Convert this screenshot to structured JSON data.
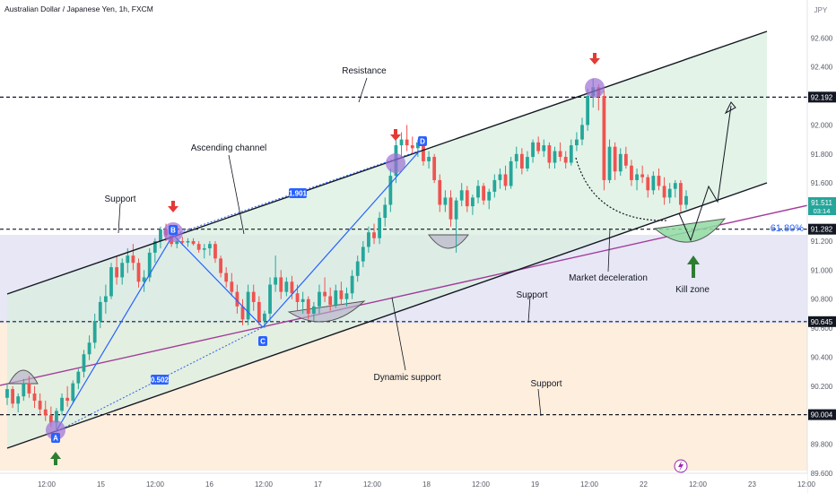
{
  "chart_data": {
    "type": "candlestick",
    "title": "Australian Dollar / Japanese Yen, 1h, FXCM",
    "currency": "JPY",
    "ylim": [
      89.6,
      92.75
    ],
    "y_ticks": [
      89.6,
      89.8,
      90.0,
      90.2,
      90.4,
      90.6,
      90.8,
      91.0,
      91.2,
      91.4,
      91.6,
      91.8,
      92.0,
      92.2,
      92.4,
      92.6
    ],
    "y_tick_labels": [
      "89.600",
      "89.800",
      "90.000",
      "90.200",
      "90.400",
      "90.600",
      "90.800",
      "91.000",
      "91.200",
      "91.400",
      "91.600",
      "91.800",
      "92.000",
      "92.200",
      "92.400",
      "92.600"
    ],
    "x_ticks": [
      "12:00",
      "15",
      "12:00",
      "16",
      "12:00",
      "17",
      "12:00",
      "18",
      "12:00",
      "19",
      "12:00",
      "22",
      "12:00",
      "23",
      "12:00"
    ],
    "price_levels": [
      {
        "value": 92.192,
        "label": "92.192"
      },
      {
        "value": 91.282,
        "label": "91.282"
      },
      {
        "value": 90.645,
        "label": "90.645"
      },
      {
        "value": 90.004,
        "label": "90.004"
      }
    ],
    "current_price": {
      "value": 91.511,
      "label": "91.511",
      "countdown": "03:14"
    },
    "fib_label": "61.80%",
    "pattern_points": [
      {
        "label": "A",
        "value": 89.92
      },
      {
        "label": "B",
        "value": 91.3
      },
      {
        "label": "C",
        "value": 90.6
      },
      {
        "label": "D",
        "value": 92.0
      }
    ],
    "pattern_ratios": [
      "1.901",
      "0.502"
    ],
    "annotations": [
      "Resistance",
      "Ascending channel",
      "Support",
      "Support",
      "Support",
      "Dynamic support",
      "Market deceleration",
      "Kill zone"
    ],
    "colors": {
      "up": "#26a69a",
      "down": "#ef5350",
      "channel_fill": "#e7f4ec",
      "zone_blue": "#e7e7f5",
      "zone_orange": "#fdeedd",
      "pattern": "#2962ff",
      "circle": "#9c6fd6",
      "magenta_line": "#a23b9a",
      "arrow_red": "#e53935",
      "arrow_green": "#2e7d32",
      "kill_zone": "#8fdba1"
    },
    "candles": [
      [
        90.12,
        90.22,
        90.07,
        90.18
      ],
      [
        90.18,
        90.2,
        90.05,
        90.08
      ],
      [
        90.08,
        90.15,
        90.02,
        90.13
      ],
      [
        90.13,
        90.25,
        90.1,
        90.22
      ],
      [
        90.22,
        90.27,
        90.12,
        90.15
      ],
      [
        90.15,
        90.2,
        90.05,
        90.1
      ],
      [
        90.1,
        90.15,
        90.0,
        90.04
      ],
      [
        90.04,
        90.1,
        89.96,
        90.0
      ],
      [
        90.0,
        90.06,
        89.92,
        89.95
      ],
      [
        89.95,
        90.05,
        89.9,
        90.03
      ],
      [
        90.03,
        90.15,
        90.0,
        90.12
      ],
      [
        90.12,
        90.2,
        90.06,
        90.1
      ],
      [
        90.1,
        90.24,
        90.08,
        90.22
      ],
      [
        90.22,
        90.32,
        90.18,
        90.3
      ],
      [
        90.3,
        90.45,
        90.26,
        90.42
      ],
      [
        90.42,
        90.55,
        90.38,
        90.5
      ],
      [
        90.5,
        90.7,
        90.46,
        90.65
      ],
      [
        90.65,
        90.82,
        90.6,
        90.78
      ],
      [
        90.78,
        90.9,
        90.7,
        90.82
      ],
      [
        90.82,
        91.05,
        90.8,
        91.02
      ],
      [
        91.02,
        91.1,
        90.9,
        90.95
      ],
      [
        90.95,
        91.08,
        90.9,
        91.05
      ],
      [
        91.05,
        91.15,
        90.98,
        91.1
      ],
      [
        91.1,
        91.18,
        91.0,
        91.05
      ],
      [
        91.05,
        91.08,
        90.88,
        90.92
      ],
      [
        90.92,
        91.0,
        90.85,
        90.95
      ],
      [
        90.95,
        91.15,
        90.92,
        91.12
      ],
      [
        91.12,
        91.22,
        91.05,
        91.2
      ],
      [
        91.2,
        91.3,
        91.15,
        91.28
      ],
      [
        91.28,
        91.32,
        91.2,
        91.24
      ],
      [
        91.24,
        91.26,
        91.16,
        91.18
      ],
      [
        91.18,
        91.22,
        91.15,
        91.2
      ],
      [
        91.2,
        91.23,
        91.17,
        91.19
      ],
      [
        91.19,
        91.22,
        91.16,
        91.2
      ],
      [
        91.2,
        91.22,
        91.17,
        91.18
      ],
      [
        91.18,
        91.2,
        91.12,
        91.14
      ],
      [
        91.14,
        91.18,
        91.08,
        91.15
      ],
      [
        91.15,
        91.2,
        91.1,
        91.18
      ],
      [
        91.18,
        91.2,
        91.05,
        91.08
      ],
      [
        91.08,
        91.1,
        90.95,
        90.98
      ],
      [
        90.98,
        91.02,
        90.88,
        90.92
      ],
      [
        90.92,
        90.98,
        90.82,
        90.85
      ],
      [
        90.85,
        90.9,
        90.7,
        90.75
      ],
      [
        90.75,
        90.8,
        90.62,
        90.66
      ],
      [
        90.66,
        90.9,
        90.62,
        90.85
      ],
      [
        90.85,
        90.9,
        90.72,
        90.78
      ],
      [
        90.78,
        90.82,
        90.62,
        90.65
      ],
      [
        90.65,
        90.72,
        90.6,
        90.7
      ],
      [
        90.7,
        90.95,
        90.65,
        90.9
      ],
      [
        90.9,
        91.1,
        90.85,
        90.95
      ],
      [
        90.95,
        91.0,
        90.8,
        90.85
      ],
      [
        90.85,
        90.95,
        90.82,
        90.92
      ],
      [
        90.92,
        90.96,
        90.8,
        90.84
      ],
      [
        90.84,
        90.9,
        90.72,
        90.78
      ],
      [
        90.78,
        90.85,
        90.7,
        90.8
      ],
      [
        90.8,
        90.82,
        90.66,
        90.7
      ],
      [
        90.7,
        90.78,
        90.65,
        90.75
      ],
      [
        90.75,
        90.9,
        90.7,
        90.85
      ],
      [
        90.85,
        90.95,
        90.78,
        90.82
      ],
      [
        90.82,
        90.88,
        90.72,
        90.76
      ],
      [
        90.76,
        90.9,
        90.74,
        90.86
      ],
      [
        90.86,
        90.92,
        90.76,
        90.8
      ],
      [
        90.8,
        90.88,
        90.75,
        90.84
      ],
      [
        90.84,
        91.0,
        90.8,
        90.96
      ],
      [
        90.96,
        91.1,
        90.92,
        91.06
      ],
      [
        91.06,
        91.2,
        91.02,
        91.16
      ],
      [
        91.16,
        91.3,
        91.12,
        91.26
      ],
      [
        91.26,
        91.32,
        91.18,
        91.22
      ],
      [
        91.22,
        91.4,
        91.18,
        91.36
      ],
      [
        91.36,
        91.5,
        91.3,
        91.45
      ],
      [
        91.45,
        91.7,
        91.4,
        91.65
      ],
      [
        91.65,
        91.9,
        91.6,
        91.86
      ],
      [
        91.86,
        91.95,
        91.78,
        91.9
      ],
      [
        91.9,
        92.0,
        91.82,
        91.86
      ],
      [
        91.86,
        91.92,
        91.8,
        91.84
      ],
      [
        91.84,
        91.9,
        91.78,
        91.88
      ],
      [
        91.88,
        91.9,
        91.72,
        91.75
      ],
      [
        91.75,
        91.82,
        91.7,
        91.78
      ],
      [
        91.78,
        91.8,
        91.6,
        91.62
      ],
      [
        91.62,
        91.66,
        91.4,
        91.45
      ],
      [
        91.45,
        91.55,
        91.4,
        91.5
      ],
      [
        91.5,
        91.55,
        91.3,
        91.35
      ],
      [
        91.35,
        91.5,
        91.12,
        91.48
      ],
      [
        91.48,
        91.6,
        91.44,
        91.55
      ],
      [
        91.55,
        91.58,
        91.4,
        91.44
      ],
      [
        91.44,
        91.52,
        91.38,
        91.5
      ],
      [
        91.5,
        91.62,
        91.46,
        91.58
      ],
      [
        91.58,
        91.6,
        91.45,
        91.48
      ],
      [
        91.48,
        91.56,
        91.42,
        91.54
      ],
      [
        91.54,
        91.66,
        91.5,
        91.62
      ],
      [
        91.62,
        91.7,
        91.56,
        91.66
      ],
      [
        91.66,
        91.72,
        91.55,
        91.58
      ],
      [
        91.58,
        91.78,
        91.56,
        91.75
      ],
      [
        91.75,
        91.85,
        91.7,
        91.8
      ],
      [
        91.8,
        91.84,
        91.66,
        91.7
      ],
      [
        91.7,
        91.82,
        91.68,
        91.78
      ],
      [
        91.78,
        91.9,
        91.74,
        91.88
      ],
      [
        91.88,
        91.92,
        91.8,
        91.82
      ],
      [
        91.82,
        91.9,
        91.78,
        91.86
      ],
      [
        91.86,
        91.88,
        91.7,
        91.74
      ],
      [
        91.74,
        91.85,
        91.7,
        91.82
      ],
      [
        91.82,
        91.88,
        91.75,
        91.78
      ],
      [
        91.78,
        91.82,
        91.7,
        91.74
      ],
      [
        91.74,
        91.9,
        91.72,
        91.86
      ],
      [
        91.86,
        91.95,
        91.82,
        91.9
      ],
      [
        91.9,
        92.05,
        91.86,
        92.0
      ],
      [
        92.0,
        92.25,
        91.96,
        92.2
      ],
      [
        92.2,
        92.32,
        92.12,
        92.26
      ],
      [
        92.26,
        92.28,
        92.1,
        92.2
      ],
      [
        92.2,
        92.24,
        91.55,
        91.62
      ],
      [
        91.62,
        91.9,
        91.6,
        91.85
      ],
      [
        91.85,
        91.88,
        91.62,
        91.68
      ],
      [
        91.68,
        91.84,
        91.65,
        91.8
      ],
      [
        91.8,
        91.85,
        91.7,
        91.72
      ],
      [
        91.72,
        91.76,
        91.58,
        91.62
      ],
      [
        91.62,
        91.7,
        91.55,
        91.66
      ],
      [
        91.66,
        91.72,
        91.6,
        91.64
      ],
      [
        91.64,
        91.66,
        91.5,
        91.55
      ],
      [
        91.55,
        91.68,
        91.52,
        91.65
      ],
      [
        91.65,
        91.7,
        91.55,
        91.58
      ],
      [
        91.58,
        91.64,
        91.45,
        91.5
      ],
      [
        91.5,
        91.6,
        91.46,
        91.56
      ],
      [
        91.56,
        91.62,
        91.5,
        91.6
      ],
      [
        91.6,
        91.62,
        91.4,
        91.45
      ],
      [
        91.45,
        91.55,
        91.42,
        91.51
      ]
    ]
  }
}
